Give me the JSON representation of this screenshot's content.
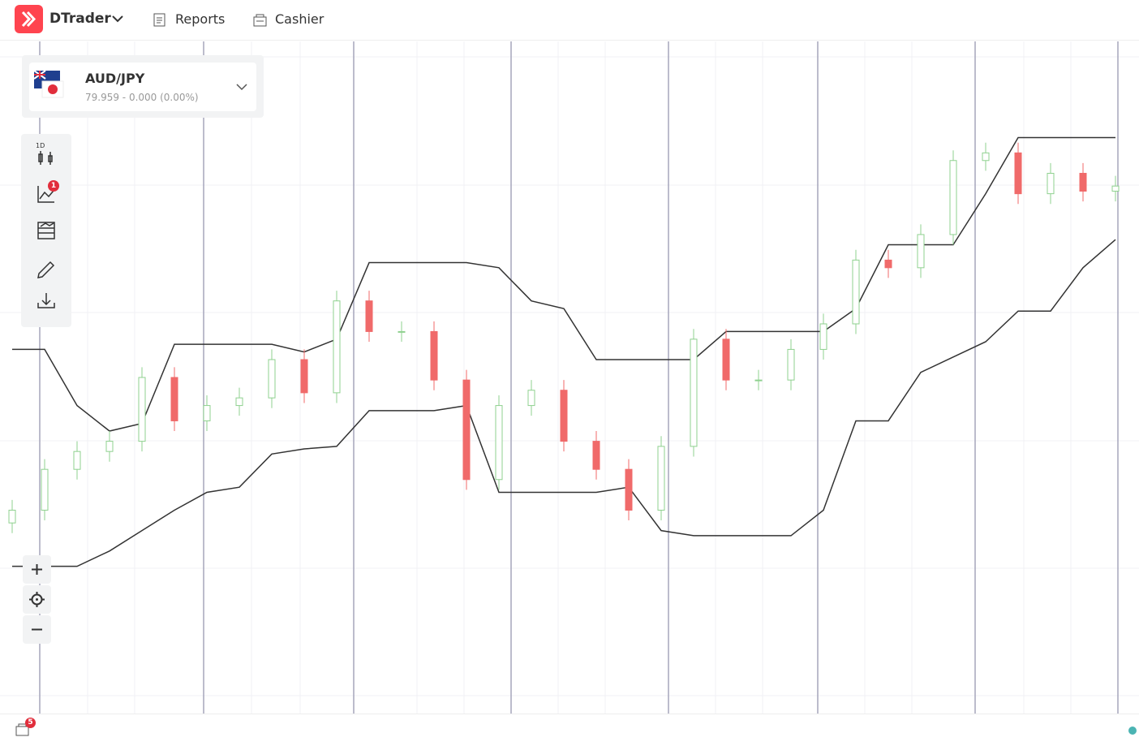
{
  "header": {
    "brand": "DTrader",
    "nav": [
      "Reports",
      "Cashier"
    ]
  },
  "symbol": {
    "name": "AUD/JPY",
    "quote": "79.959 - 0.000 (0.00%)"
  },
  "toolbar": {
    "interval": "1D",
    "indicator_badge": 1
  },
  "footer": {
    "positions_badge": 5
  },
  "chart_data": {
    "type": "candlestick",
    "open": [
      78.64,
      78.69,
      78.85,
      78.92,
      78.96,
      79.21,
      79.04,
      79.1,
      79.13,
      79.28,
      79.15,
      79.51,
      79.39,
      79.39,
      79.2,
      78.81,
      79.1,
      79.16,
      78.96,
      78.85,
      78.69,
      78.94,
      79.36,
      79.2,
      79.2,
      79.32,
      79.42,
      79.67,
      79.64,
      79.77,
      80.06,
      80.09,
      79.93,
      80.01,
      79.94
    ],
    "high": [
      78.73,
      78.89,
      78.96,
      79.0,
      79.25,
      79.25,
      79.14,
      79.17,
      79.32,
      79.32,
      79.55,
      79.55,
      79.43,
      79.43,
      79.24,
      79.14,
      79.2,
      79.2,
      79.0,
      78.89,
      78.98,
      79.4,
      79.4,
      79.24,
      79.36,
      79.46,
      79.71,
      79.71,
      79.81,
      80.1,
      80.13,
      80.13,
      80.05,
      80.05,
      80.0
    ],
    "low": [
      78.6,
      78.65,
      78.81,
      78.88,
      78.92,
      79.0,
      79.0,
      79.06,
      79.09,
      79.11,
      79.11,
      79.35,
      79.35,
      79.16,
      78.77,
      78.77,
      79.06,
      78.92,
      78.81,
      78.65,
      78.65,
      78.9,
      79.16,
      79.16,
      79.16,
      79.28,
      79.38,
      79.6,
      79.6,
      79.73,
      80.02,
      79.89,
      79.89,
      79.9,
      79.9
    ],
    "close": [
      78.69,
      78.85,
      78.92,
      78.96,
      79.21,
      79.04,
      79.1,
      79.13,
      79.28,
      79.15,
      79.51,
      79.39,
      79.39,
      79.2,
      78.81,
      79.1,
      79.16,
      78.96,
      78.85,
      78.69,
      78.94,
      79.36,
      79.2,
      79.2,
      79.32,
      79.42,
      79.67,
      79.64,
      79.77,
      80.06,
      80.09,
      79.93,
      80.01,
      79.94,
      79.96
    ],
    "up_color": "#8fd18f",
    "down_color": "#f06a6a",
    "series": [
      {
        "color": "#333333",
        "values": [
          79.32,
          79.32,
          79.1,
          79.0,
          79.03,
          79.34,
          79.34,
          79.34,
          79.34,
          79.31,
          79.36,
          79.66,
          79.66,
          79.66,
          79.66,
          79.64,
          79.51,
          79.48,
          79.28,
          79.28,
          79.28,
          79.28,
          79.39,
          79.39,
          79.39,
          79.39,
          79.48,
          79.73,
          79.73,
          79.73,
          79.93,
          80.15,
          80.15,
          80.15,
          80.15
        ]
      },
      {
        "color": "#333333",
        "values": [
          78.47,
          78.47,
          78.47,
          78.53,
          78.61,
          78.69,
          78.76,
          78.78,
          78.91,
          78.93,
          78.94,
          79.08,
          79.08,
          79.08,
          79.1,
          78.76,
          78.76,
          78.76,
          78.76,
          78.78,
          78.61,
          78.59,
          78.59,
          78.59,
          78.59,
          78.69,
          79.04,
          79.04,
          79.23,
          79.29,
          79.35,
          79.47,
          79.47,
          79.64,
          79.75
        ]
      }
    ],
    "ylim": [
      77.89,
      80.53
    ]
  }
}
